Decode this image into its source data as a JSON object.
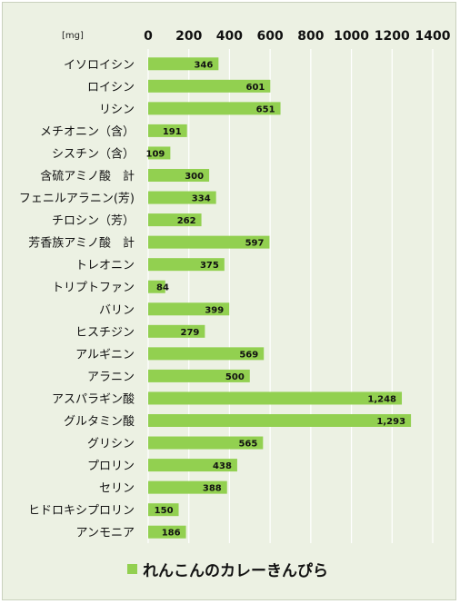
{
  "chart_data": {
    "type": "bar",
    "orientation": "horizontal",
    "unit_label": "[mg]",
    "xlim": [
      0,
      1400
    ],
    "ticks": [
      0,
      200,
      400,
      600,
      800,
      1000,
      1200,
      1400
    ],
    "categories": [
      "イソロイシン",
      "ロイシン",
      "リシン",
      "メチオニン（含）",
      "シスチン（含）",
      "含硫アミノ酸　計",
      "フェニルアラニン(芳)",
      "チロシン（芳）",
      "芳香族アミノ酸　計",
      "トレオニン",
      "トリプトファン",
      "バリン",
      "ヒスチジン",
      "アルギニン",
      "アラニン",
      "アスパラギン酸",
      "グルタミン酸",
      "グリシン",
      "プロリン",
      "セリン",
      "ヒドロキシプロリン",
      "アンモニア"
    ],
    "series": [
      {
        "name": "れんこんのカレーきんぴら",
        "values": [
          346,
          601,
          651,
          191,
          109,
          300,
          334,
          262,
          597,
          375,
          84,
          399,
          279,
          569,
          500,
          1248,
          1293,
          565,
          438,
          388,
          150,
          186
        ],
        "labels": [
          "346",
          "601",
          "651",
          "191",
          "109",
          "300",
          "334",
          "262",
          "597",
          "375",
          "84",
          "399",
          "279",
          "569",
          "500",
          "1,248",
          "1,293",
          "565",
          "438",
          "388",
          "150",
          "186"
        ]
      }
    ],
    "grid": true,
    "legend_position": "bottom",
    "colors": {
      "bar": "#92d050",
      "grid": "#ffffff",
      "background": "#ecf1e3"
    }
  }
}
